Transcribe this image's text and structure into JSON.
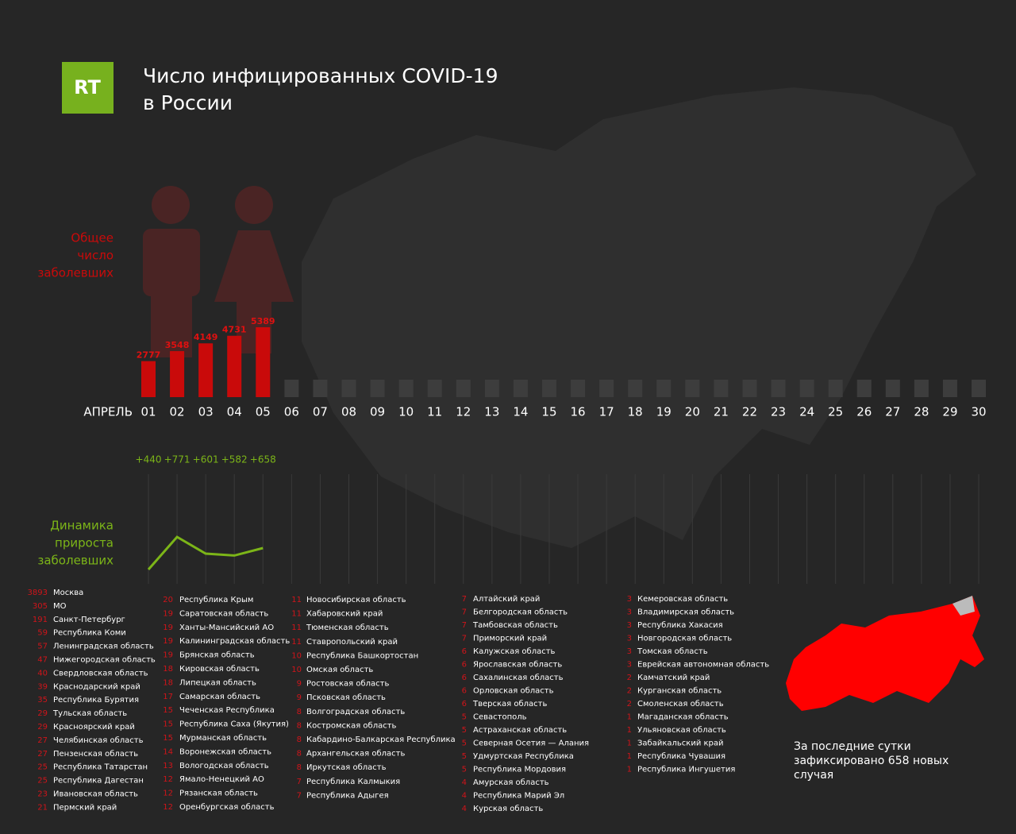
{
  "header": {
    "logo": "RT",
    "title_lines": [
      "Число инфицированных COVID-19",
      "в России"
    ]
  },
  "chart_data": [
    {
      "type": "bar",
      "label_lines": [
        "Общее",
        "число",
        "заболевших"
      ],
      "x_label": "АПРЕЛЬ",
      "categories": [
        "01",
        "02",
        "03",
        "04",
        "05",
        "06",
        "07",
        "08",
        "09",
        "10",
        "11",
        "12",
        "13",
        "14",
        "15",
        "16",
        "17",
        "18",
        "19",
        "20",
        "21",
        "22",
        "23",
        "24",
        "25",
        "26",
        "27",
        "28",
        "29",
        "30"
      ],
      "values": [
        2777,
        3548,
        4149,
        4731,
        5389,
        null,
        null,
        null,
        null,
        null,
        null,
        null,
        null,
        null,
        null,
        null,
        null,
        null,
        null,
        null,
        null,
        null,
        null,
        null,
        null,
        null,
        null,
        null,
        null,
        null
      ],
      "color": "#c90a0a"
    },
    {
      "type": "line",
      "label_lines": [
        "Динамика",
        "прироста",
        "заболевших"
      ],
      "values": [
        440,
        771,
        601,
        582,
        658
      ],
      "value_labels": [
        "+440",
        "+771",
        "+601",
        "+582",
        "+658"
      ],
      "color": "#7cb518"
    }
  ],
  "regions": [
    [
      [
        3893,
        "Москва"
      ],
      [
        305,
        "МО"
      ],
      [
        191,
        "Санкт-Петербург"
      ],
      [
        59,
        "Республика Коми"
      ],
      [
        57,
        "Ленинградская область"
      ],
      [
        47,
        "Нижегородская область"
      ],
      [
        40,
        "Свердловская область"
      ],
      [
        39,
        "Краснодарский край"
      ],
      [
        35,
        "Республика Бурятия"
      ],
      [
        29,
        "Тульская область"
      ],
      [
        29,
        "Красноярский край"
      ],
      [
        27,
        "Челябинская область"
      ],
      [
        27,
        "Пензенская область"
      ],
      [
        25,
        "Республика Татарстан"
      ],
      [
        25,
        "Республика Дагестан"
      ],
      [
        23,
        "Ивановская область"
      ],
      [
        21,
        "Пермский край"
      ]
    ],
    [
      [
        20,
        "Республика Крым"
      ],
      [
        19,
        "Саратовская область"
      ],
      [
        19,
        "Ханты-Мансийский АО"
      ],
      [
        19,
        "Калининградская область"
      ],
      [
        19,
        "Брянская область"
      ],
      [
        18,
        "Кировская область"
      ],
      [
        18,
        "Липецкая область"
      ],
      [
        17,
        "Самарская область"
      ],
      [
        15,
        "Чеченская Республика"
      ],
      [
        15,
        "Республика Саха (Якутия)"
      ],
      [
        15,
        "Мурманская область"
      ],
      [
        14,
        "Воронежская область"
      ],
      [
        13,
        "Вологодская область"
      ],
      [
        12,
        "Ямало-Ненецкий АО"
      ],
      [
        12,
        "Рязанская область"
      ],
      [
        12,
        "Оренбургская область"
      ]
    ],
    [
      [
        11,
        "Новосибирская область"
      ],
      [
        11,
        "Хабаровский край"
      ],
      [
        11,
        "Тюменская область"
      ],
      [
        11,
        "Ставропольский край"
      ],
      [
        10,
        "Республика Башкортостан"
      ],
      [
        10,
        "Омская область"
      ],
      [
        9,
        "Ростовская область"
      ],
      [
        9,
        "Псковская область"
      ],
      [
        8,
        "Волгоградская область"
      ],
      [
        8,
        "Костромская область"
      ],
      [
        8,
        "Кабардино-Балкарская Республика"
      ],
      [
        8,
        "Архангельская область"
      ],
      [
        8,
        "Иркутская область"
      ],
      [
        7,
        "Республика Калмыкия"
      ],
      [
        7,
        "Республика Адыгея"
      ]
    ],
    [
      [
        7,
        "Алтайский край"
      ],
      [
        7,
        "Белгородская область"
      ],
      [
        7,
        "Тамбовская область"
      ],
      [
        7,
        "Приморский край"
      ],
      [
        6,
        "Калужская область"
      ],
      [
        6,
        "Ярославская область"
      ],
      [
        6,
        "Сахалинская область"
      ],
      [
        6,
        "Орловская область"
      ],
      [
        6,
        "Тверская область"
      ],
      [
        5,
        "Севастополь"
      ],
      [
        5,
        "Астраханская область"
      ],
      [
        5,
        "Северная Осетия — Алания"
      ],
      [
        5,
        "Удмуртская Республика"
      ],
      [
        5,
        "Республика Мордовия"
      ],
      [
        4,
        "Амурская область"
      ],
      [
        4,
        "Республика Марий Эл"
      ],
      [
        4,
        "Курская область"
      ]
    ],
    [
      [
        3,
        "Кемеровская область"
      ],
      [
        3,
        "Владимирская область"
      ],
      [
        3,
        "Республика Хакасия"
      ],
      [
        3,
        "Новгородская область"
      ],
      [
        3,
        "Томская область"
      ],
      [
        3,
        "Еврейская автономная область"
      ],
      [
        2,
        "Камчатский край"
      ],
      [
        2,
        "Курганская область"
      ],
      [
        2,
        "Смоленская область"
      ],
      [
        1,
        "Магаданская область"
      ],
      [
        1,
        "Ульяновская область"
      ],
      [
        1,
        "Забайкальский край"
      ],
      [
        1,
        "Республика Чувашия"
      ],
      [
        1,
        "Республика Ингушетия"
      ]
    ]
  ],
  "footer_lines": [
    "За последние сутки",
    "зафиксировано 658 новых",
    "случая"
  ]
}
